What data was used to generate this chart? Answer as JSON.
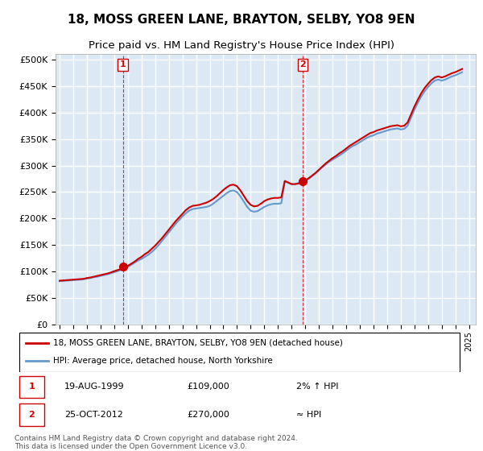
{
  "title": "18, MOSS GREEN LANE, BRAYTON, SELBY, YO8 9EN",
  "subtitle": "Price paid vs. HM Land Registry's House Price Index (HPI)",
  "title_fontsize": 11,
  "subtitle_fontsize": 9.5,
  "background_color": "#ffffff",
  "plot_bg_color": "#dce9f5",
  "grid_color": "#ffffff",
  "ylim": [
    0,
    500000
  ],
  "yticks": [
    0,
    50000,
    100000,
    150000,
    200000,
    250000,
    300000,
    350000,
    400000,
    450000,
    500000
  ],
  "xlim_start": 1995.0,
  "xlim_end": 2025.5,
  "xtick_years": [
    1995,
    1996,
    1997,
    1998,
    1999,
    2000,
    2001,
    2002,
    2003,
    2004,
    2005,
    2006,
    2007,
    2008,
    2009,
    2010,
    2011,
    2012,
    2013,
    2014,
    2015,
    2016,
    2017,
    2018,
    2019,
    2020,
    2021,
    2022,
    2023,
    2024,
    2025
  ],
  "hpi_color": "#6699cc",
  "property_color": "#cc0000",
  "sale1_year": 1999.63,
  "sale1_price": 109000,
  "sale2_year": 2012.81,
  "sale2_price": 270000,
  "legend_property": "18, MOSS GREEN LANE, BRAYTON, SELBY, YO8 9EN (detached house)",
  "legend_hpi": "HPI: Average price, detached house, North Yorkshire",
  "ann1_label": "1",
  "ann2_label": "2",
  "ann1_date": "19-AUG-1999",
  "ann1_price": "£109,000",
  "ann1_hpi": "2% ↑ HPI",
  "ann2_date": "25-OCT-2012",
  "ann2_price": "£270,000",
  "ann2_hpi": "≈ HPI",
  "footer": "Contains HM Land Registry data © Crown copyright and database right 2024.\nThis data is licensed under the Open Government Licence v3.0.",
  "hpi_data_x": [
    1995.0,
    1995.25,
    1995.5,
    1995.75,
    1996.0,
    1996.25,
    1996.5,
    1996.75,
    1997.0,
    1997.25,
    1997.5,
    1997.75,
    1998.0,
    1998.25,
    1998.5,
    1998.75,
    1999.0,
    1999.25,
    1999.5,
    1999.75,
    2000.0,
    2000.25,
    2000.5,
    2000.75,
    2001.0,
    2001.25,
    2001.5,
    2001.75,
    2002.0,
    2002.25,
    2002.5,
    2002.75,
    2003.0,
    2003.25,
    2003.5,
    2003.75,
    2004.0,
    2004.25,
    2004.5,
    2004.75,
    2005.0,
    2005.25,
    2005.5,
    2005.75,
    2006.0,
    2006.25,
    2006.5,
    2006.75,
    2007.0,
    2007.25,
    2007.5,
    2007.75,
    2008.0,
    2008.25,
    2008.5,
    2008.75,
    2009.0,
    2009.25,
    2009.5,
    2009.75,
    2010.0,
    2010.25,
    2010.5,
    2010.75,
    2011.0,
    2011.25,
    2011.5,
    2011.75,
    2012.0,
    2012.25,
    2012.5,
    2012.75,
    2013.0,
    2013.25,
    2013.5,
    2013.75,
    2014.0,
    2014.25,
    2014.5,
    2014.75,
    2015.0,
    2015.25,
    2015.5,
    2015.75,
    2016.0,
    2016.25,
    2016.5,
    2016.75,
    2017.0,
    2017.25,
    2017.5,
    2017.75,
    2018.0,
    2018.25,
    2018.5,
    2018.75,
    2019.0,
    2019.25,
    2019.5,
    2019.75,
    2020.0,
    2020.25,
    2020.5,
    2020.75,
    2021.0,
    2021.25,
    2021.5,
    2021.75,
    2022.0,
    2022.25,
    2022.5,
    2022.75,
    2023.0,
    2023.25,
    2023.5,
    2023.75,
    2024.0,
    2024.25,
    2024.5
  ],
  "hpi_data_y": [
    82000,
    82500,
    83000,
    83500,
    84000,
    84500,
    85000,
    85500,
    87000,
    88000,
    89500,
    90500,
    92000,
    93500,
    95000,
    97000,
    99000,
    101000,
    103000,
    106000,
    109000,
    113000,
    117000,
    121000,
    124000,
    128000,
    132000,
    137000,
    143000,
    150000,
    158000,
    166000,
    174000,
    182000,
    190000,
    197000,
    204000,
    210000,
    215000,
    218000,
    219000,
    220000,
    221000,
    222000,
    224000,
    228000,
    233000,
    238000,
    243000,
    248000,
    252000,
    253000,
    250000,
    242000,
    232000,
    222000,
    215000,
    213000,
    214000,
    218000,
    222000,
    225000,
    227000,
    228000,
    228000,
    229000,
    270000,
    268000,
    265000,
    265000,
    267000,
    268000,
    271000,
    275000,
    280000,
    285000,
    291000,
    297000,
    302000,
    307000,
    311000,
    315000,
    319000,
    323000,
    328000,
    333000,
    337000,
    340000,
    344000,
    348000,
    352000,
    355000,
    357000,
    360000,
    362000,
    364000,
    366000,
    368000,
    369000,
    370000,
    368000,
    369000,
    375000,
    390000,
    405000,
    418000,
    430000,
    440000,
    448000,
    455000,
    460000,
    462000,
    460000,
    462000,
    465000,
    468000,
    470000,
    473000,
    476000
  ],
  "prop_data_x": [
    1995.0,
    1995.25,
    1995.5,
    1995.75,
    1996.0,
    1996.25,
    1996.5,
    1996.75,
    1997.0,
    1997.25,
    1997.5,
    1997.75,
    1998.0,
    1998.25,
    1998.5,
    1998.75,
    1999.0,
    1999.25,
    1999.5,
    1999.75,
    2000.0,
    2000.25,
    2000.5,
    2000.75,
    2001.0,
    2001.25,
    2001.5,
    2001.75,
    2002.0,
    2002.25,
    2002.5,
    2002.75,
    2003.0,
    2003.25,
    2003.5,
    2003.75,
    2004.0,
    2004.25,
    2004.5,
    2004.75,
    2005.0,
    2005.25,
    2005.5,
    2005.75,
    2006.0,
    2006.25,
    2006.5,
    2006.75,
    2007.0,
    2007.25,
    2007.5,
    2007.75,
    2008.0,
    2008.25,
    2008.5,
    2008.75,
    2009.0,
    2009.25,
    2009.5,
    2009.75,
    2010.0,
    2010.25,
    2010.5,
    2010.75,
    2011.0,
    2011.25,
    2011.5,
    2011.75,
    2012.0,
    2012.25,
    2012.5,
    2012.75,
    2013.0,
    2013.25,
    2013.5,
    2013.75,
    2014.0,
    2014.25,
    2014.5,
    2014.75,
    2015.0,
    2015.25,
    2015.5,
    2015.75,
    2016.0,
    2016.25,
    2016.5,
    2016.75,
    2017.0,
    2017.25,
    2017.5,
    2017.75,
    2018.0,
    2018.25,
    2018.5,
    2018.75,
    2019.0,
    2019.25,
    2019.5,
    2019.75,
    2020.0,
    2020.25,
    2020.5,
    2020.75,
    2021.0,
    2021.25,
    2021.5,
    2021.75,
    2022.0,
    2022.25,
    2022.5,
    2022.75,
    2023.0,
    2023.25,
    2023.5,
    2023.75,
    2024.0,
    2024.25,
    2024.5
  ],
  "prop_data_y": [
    83000,
    83500,
    84000,
    84500,
    85000,
    85500,
    86000,
    86500,
    88000,
    89000,
    90500,
    92000,
    93500,
    95000,
    96500,
    98500,
    101000,
    103000,
    105000,
    108000,
    111000,
    115000,
    119000,
    124000,
    128000,
    133000,
    137000,
    143000,
    149000,
    156000,
    163000,
    171000,
    179000,
    187000,
    195000,
    202000,
    209000,
    216000,
    221000,
    224000,
    225000,
    226000,
    228000,
    230000,
    233000,
    237000,
    242000,
    248000,
    254000,
    259000,
    263000,
    264000,
    261000,
    253000,
    243000,
    233000,
    226000,
    223000,
    224000,
    228000,
    233000,
    236000,
    238000,
    239000,
    239000,
    240000,
    271000,
    268000,
    265000,
    265000,
    266000,
    269000,
    272000,
    276000,
    281000,
    286000,
    292000,
    298000,
    304000,
    309000,
    314000,
    318000,
    323000,
    327000,
    332000,
    337000,
    341000,
    345000,
    349000,
    353000,
    357000,
    361000,
    363000,
    366000,
    368000,
    370000,
    372000,
    374000,
    375000,
    376000,
    374000,
    375000,
    381000,
    396000,
    411000,
    424000,
    436000,
    446000,
    454000,
    461000,
    466000,
    468000,
    466000,
    468000,
    471000,
    474000,
    476000,
    479000,
    482000
  ]
}
